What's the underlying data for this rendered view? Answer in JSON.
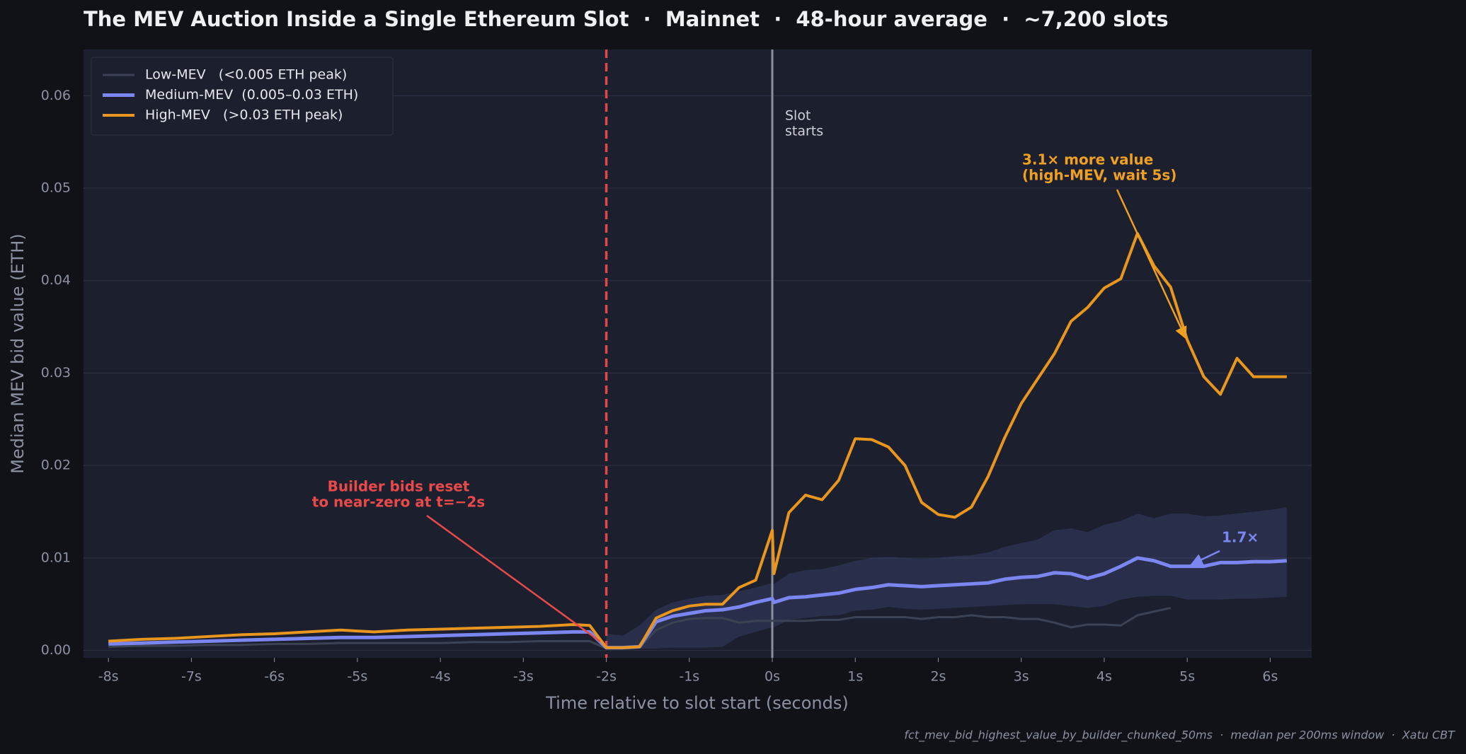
{
  "chart_data": {
    "type": "line",
    "title": "The MEV Auction Inside a Single Ethereum Slot  ·  Mainnet  ·  48-hour average  ·  ~7,200 slots",
    "x_label": "Time relative to slot start (seconds)",
    "y_label": "Median MEV bid value (ETH)",
    "footer": "fct_mev_bid_highest_value_by_builder_chunked_50ms  ·  median per 200ms window  ·  Xatu CBT",
    "xlim": [
      -8.3,
      6.5
    ],
    "ylim": [
      -0.0008,
      0.065
    ],
    "xticks": [
      {
        "value": -8,
        "label": "-8s"
      },
      {
        "value": -7,
        "label": "-7s"
      },
      {
        "value": -6,
        "label": "-6s"
      },
      {
        "value": -5,
        "label": "-5s"
      },
      {
        "value": -4,
        "label": "-4s"
      },
      {
        "value": -3,
        "label": "-3s"
      },
      {
        "value": -2,
        "label": "-2s"
      },
      {
        "value": -1,
        "label": "-1s"
      },
      {
        "value": 0,
        "label": "0s"
      },
      {
        "value": 1,
        "label": "1s"
      },
      {
        "value": 2,
        "label": "2s"
      },
      {
        "value": 3,
        "label": "3s"
      },
      {
        "value": 4,
        "label": "4s"
      },
      {
        "value": 5,
        "label": "5s"
      },
      {
        "value": 6,
        "label": "6s"
      }
    ],
    "yticks": [
      {
        "value": 0,
        "label": "0.00"
      },
      0.01,
      0.02,
      0.03,
      0.04,
      0.05,
      0.06
    ],
    "grid": true,
    "legend": "upper left",
    "x": [
      -8,
      -7.6,
      -7.2,
      -6.8,
      -6.4,
      -6,
      -5.6,
      -5.2,
      -4.8,
      -4.4,
      -4,
      -3.6,
      -3.2,
      -2.8,
      -2.4,
      -2.2,
      -2,
      -1.8,
      -1.6,
      -1.4,
      -1.2,
      -1,
      -0.8,
      -0.6,
      -0.4,
      -0.2,
      0,
      0.02,
      0.2,
      0.4,
      0.6,
      0.8,
      1,
      1.2,
      1.4,
      1.6,
      1.8,
      2,
      2.2,
      2.4,
      2.6,
      2.8,
      3,
      3.2,
      3.4,
      3.6,
      3.8,
      4,
      4.2,
      4.4,
      4.6,
      4.8,
      5,
      5.2,
      5.4,
      5.6,
      5.8,
      6,
      6.2
    ],
    "series": [
      {
        "name": "Low-MEV   (<0.005 ETH peak)",
        "color": "#3b4253",
        "values": [
          0.0004,
          0.0005,
          0.0005,
          0.0006,
          0.0006,
          0.0007,
          0.0007,
          0.0008,
          0.0008,
          0.0008,
          0.0008,
          0.0009,
          0.0009,
          0.001,
          0.001,
          0.001,
          0.0002,
          0.0002,
          0.0003,
          0.0022,
          0.003,
          0.0034,
          0.0035,
          0.0035,
          0.003,
          0.0032,
          0.0032,
          0.0032,
          0.0032,
          0.0032,
          0.0033,
          0.0033,
          0.0036,
          0.0036,
          0.0036,
          0.0036,
          0.0034,
          0.0036,
          0.0036,
          0.0038,
          0.0036,
          0.0036,
          0.0034,
          0.0034,
          0.003,
          0.0025,
          0.0028,
          0.0028,
          0.0027,
          0.0038,
          0.0042,
          0.0046,
          null,
          null,
          null,
          null,
          null,
          null,
          null
        ]
      },
      {
        "name": "Medium-MEV  (0.005–0.03 ETH)",
        "color": "#7b86f0",
        "values": [
          0.0007,
          0.0008,
          0.0009,
          0.001,
          0.0011,
          0.0012,
          0.0013,
          0.0014,
          0.0014,
          0.0015,
          0.0016,
          0.0017,
          0.0018,
          0.0019,
          0.002,
          0.002,
          0.0003,
          0.0003,
          0.0004,
          0.0031,
          0.0037,
          0.004,
          0.0043,
          0.0044,
          0.0047,
          0.0052,
          0.0056,
          0.0052,
          0.0057,
          0.0058,
          0.006,
          0.0062,
          0.0066,
          0.0068,
          0.0071,
          0.007,
          0.0069,
          0.007,
          0.0071,
          0.0072,
          0.0073,
          0.0077,
          0.0079,
          0.008,
          0.0084,
          0.0083,
          0.0078,
          0.0083,
          0.0091,
          0.01,
          0.0097,
          0.0091,
          0.0091,
          0.0091,
          0.0095,
          0.0095,
          0.0096,
          0.0096,
          0.0097
        ],
        "band_upper": [
          null,
          null,
          null,
          null,
          null,
          null,
          null,
          null,
          null,
          null,
          null,
          null,
          null,
          null,
          null,
          null,
          0.0018,
          0.0016,
          0.0027,
          0.0044,
          0.0052,
          0.0056,
          0.0059,
          0.006,
          0.0064,
          0.0068,
          0.0073,
          0.0072,
          0.0083,
          0.0087,
          0.0088,
          0.0092,
          0.0097,
          0.01,
          0.0101,
          0.01,
          0.0099,
          0.01,
          0.0102,
          0.0103,
          0.0106,
          0.0112,
          0.0116,
          0.012,
          0.013,
          0.0132,
          0.0128,
          0.0136,
          0.014,
          0.0148,
          0.0143,
          0.0148,
          0.0148,
          0.0145,
          0.0146,
          0.0148,
          0.015,
          0.0152,
          0.0155
        ],
        "band_lower": [
          null,
          null,
          null,
          null,
          null,
          null,
          null,
          null,
          null,
          null,
          null,
          null,
          null,
          null,
          null,
          null,
          0.0001,
          0.0001,
          0.0002,
          0.0002,
          0.0003,
          0.0003,
          0.0003,
          0.0004,
          0.0015,
          0.002,
          0.0025,
          0.0025,
          0.0033,
          0.0035,
          0.0037,
          0.0038,
          0.0043,
          0.0044,
          0.0047,
          0.0045,
          0.0044,
          0.0045,
          0.0046,
          0.0047,
          0.0048,
          0.0049,
          0.005,
          0.005,
          0.005,
          0.0048,
          0.0046,
          0.0048,
          0.0055,
          0.0058,
          0.0059,
          0.0059,
          0.0055,
          0.0055,
          0.0055,
          0.0056,
          0.0056,
          0.0057,
          0.0058
        ]
      },
      {
        "name": "High-MEV   (>0.03 ETH peak)",
        "color": "#e8961e",
        "values": [
          0.001,
          0.0012,
          0.0013,
          0.0015,
          0.0017,
          0.0018,
          0.002,
          0.0022,
          0.002,
          0.0022,
          0.0023,
          0.0024,
          0.0025,
          0.0026,
          0.0028,
          0.0027,
          0.0003,
          0.0003,
          0.0004,
          0.0035,
          0.0043,
          0.0048,
          0.005,
          0.005,
          0.0068,
          0.0076,
          0.013,
          0.0083,
          0.0149,
          0.0168,
          0.0163,
          0.0184,
          0.0229,
          0.0228,
          0.022,
          0.02,
          0.016,
          0.0147,
          0.0144,
          0.0155,
          0.0188,
          0.023,
          0.0267,
          0.0294,
          0.0321,
          0.0356,
          0.0371,
          0.0392,
          0.0402,
          0.0451,
          0.0416,
          0.0393,
          0.0336,
          0.0296,
          0.0277,
          0.0316,
          0.0296,
          0.0296,
          0.0296
        ]
      }
    ],
    "vlines": [
      {
        "x": -2,
        "color": "#e04848",
        "style": "dashed"
      },
      {
        "x": 0,
        "color": "#8a8f9c",
        "style": "solid"
      }
    ],
    "annotations": [
      {
        "lines": [
          "Slot",
          "starts"
        ],
        "color": "#cfd2da"
      },
      {
        "lines": [
          "Builder bids reset",
          "to near-zero at t=−2s"
        ],
        "color": "#e84a4a"
      },
      {
        "lines": [
          "3.1× more value",
          "(high-MEV, wait 5s)"
        ],
        "color": "#f0a020"
      },
      {
        "lines": [
          "1.7×"
        ],
        "color": "#7b86f0"
      }
    ]
  }
}
